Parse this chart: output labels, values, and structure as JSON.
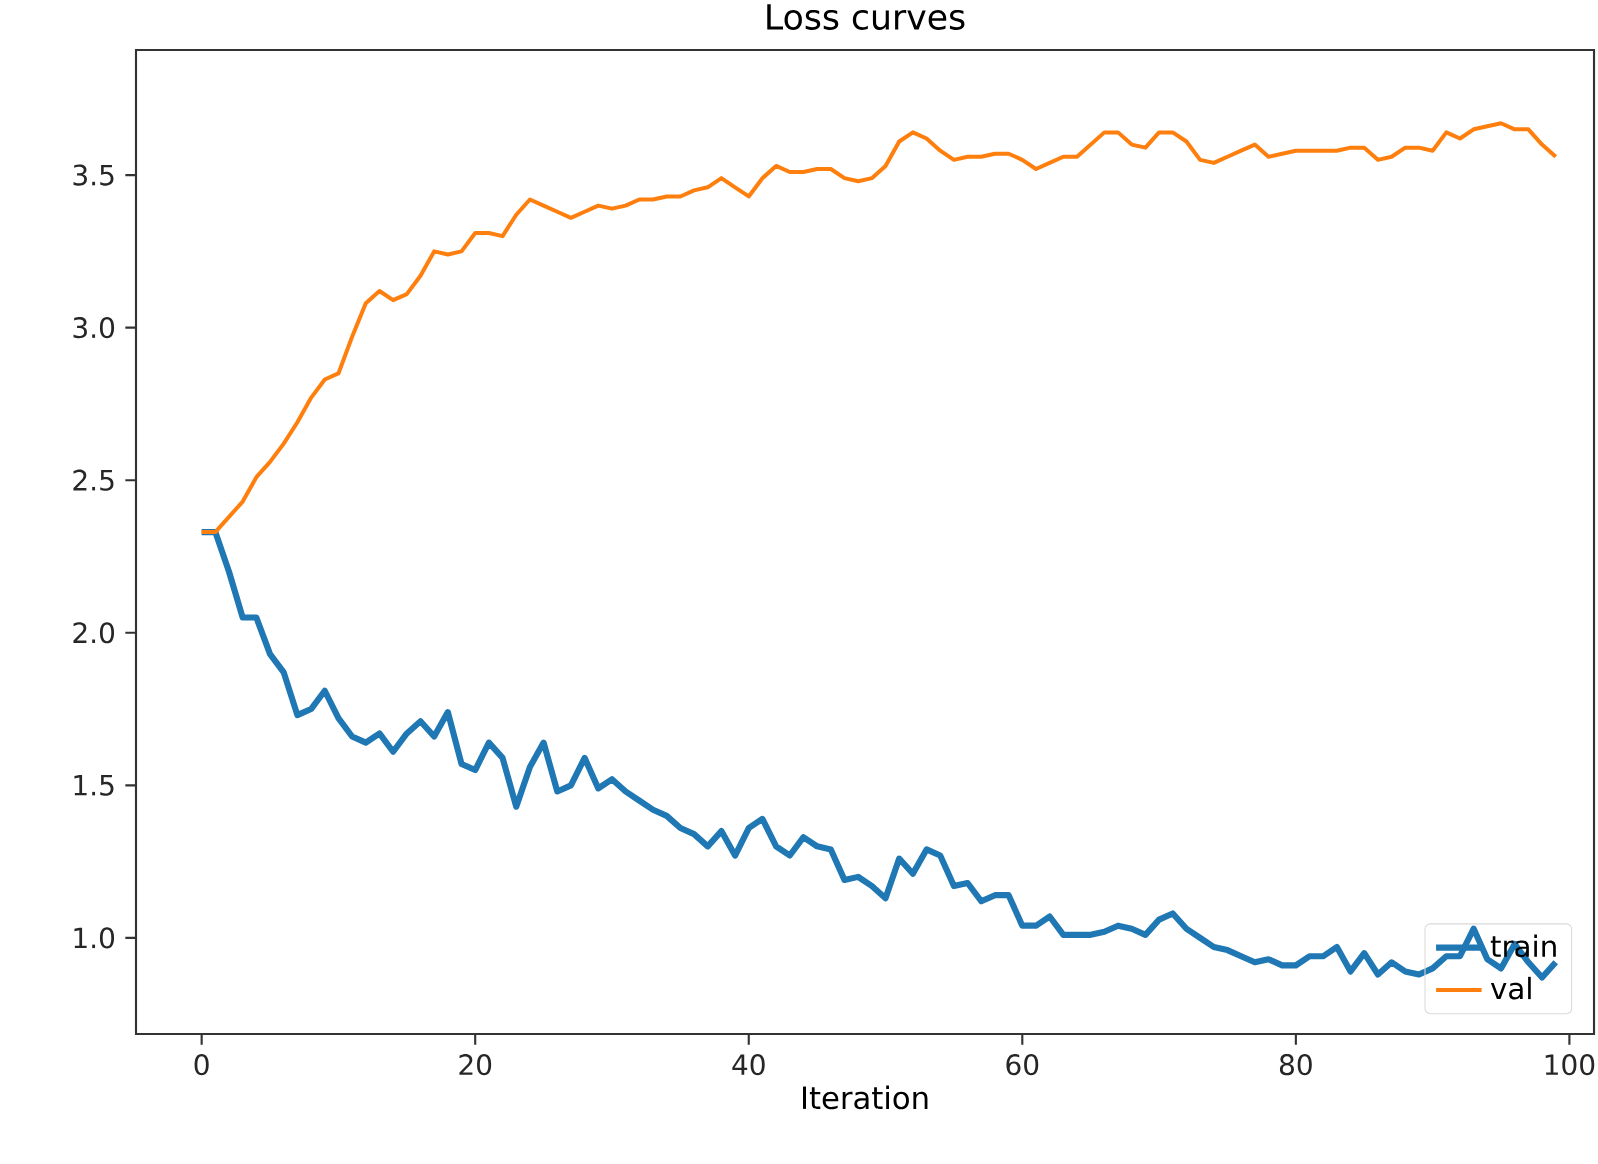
{
  "chart_data": {
    "type": "line",
    "title": "Loss curves",
    "xlabel": "Iteration",
    "x": [
      0,
      1,
      2,
      3,
      4,
      5,
      6,
      7,
      8,
      9,
      10,
      11,
      12,
      13,
      14,
      15,
      16,
      17,
      18,
      19,
      20,
      21,
      22,
      23,
      24,
      25,
      26,
      27,
      28,
      29,
      30,
      31,
      32,
      33,
      34,
      35,
      36,
      37,
      38,
      39,
      40,
      41,
      42,
      43,
      44,
      45,
      46,
      47,
      48,
      49,
      50,
      51,
      52,
      53,
      54,
      55,
      56,
      57,
      58,
      59,
      60,
      61,
      62,
      63,
      64,
      65,
      66,
      67,
      68,
      69,
      70,
      71,
      72,
      73,
      74,
      75,
      76,
      77,
      78,
      79,
      80,
      81,
      82,
      83,
      84,
      85,
      86,
      87,
      88,
      89,
      90,
      91,
      92,
      93,
      94,
      95,
      96,
      97,
      98,
      99
    ],
    "series": [
      {
        "name": "train",
        "color": "#1f77b4",
        "values": [
          2.33,
          2.33,
          2.2,
          2.05,
          2.05,
          1.93,
          1.87,
          1.73,
          1.75,
          1.81,
          1.72,
          1.66,
          1.64,
          1.67,
          1.61,
          1.67,
          1.71,
          1.66,
          1.74,
          1.57,
          1.55,
          1.64,
          1.59,
          1.43,
          1.56,
          1.64,
          1.48,
          1.5,
          1.59,
          1.49,
          1.52,
          1.48,
          1.45,
          1.42,
          1.4,
          1.36,
          1.34,
          1.3,
          1.35,
          1.27,
          1.36,
          1.39,
          1.3,
          1.27,
          1.33,
          1.3,
          1.29,
          1.19,
          1.2,
          1.17,
          1.13,
          1.26,
          1.21,
          1.29,
          1.27,
          1.17,
          1.18,
          1.12,
          1.14,
          1.14,
          1.04,
          1.04,
          1.07,
          1.01,
          1.01,
          1.01,
          1.02,
          1.04,
          1.03,
          1.01,
          1.06,
          1.08,
          1.03,
          1.0,
          0.97,
          0.96,
          0.94,
          0.92,
          0.93,
          0.91,
          0.91,
          0.94,
          0.94,
          0.97,
          0.89,
          0.95,
          0.88,
          0.92,
          0.89,
          0.88,
          0.9,
          0.94,
          0.94,
          1.03,
          0.93,
          0.9,
          0.98,
          0.92,
          0.87,
          0.92
        ]
      },
      {
        "name": "val",
        "color": "#ff7f0e",
        "values": [
          2.33,
          2.33,
          2.38,
          2.43,
          2.51,
          2.56,
          2.62,
          2.69,
          2.77,
          2.83,
          2.85,
          2.97,
          3.08,
          3.12,
          3.09,
          3.11,
          3.17,
          3.25,
          3.24,
          3.25,
          3.31,
          3.31,
          3.3,
          3.37,
          3.42,
          3.4,
          3.38,
          3.36,
          3.38,
          3.4,
          3.39,
          3.4,
          3.42,
          3.42,
          3.43,
          3.43,
          3.45,
          3.46,
          3.49,
          3.46,
          3.43,
          3.49,
          3.53,
          3.51,
          3.51,
          3.52,
          3.52,
          3.49,
          3.48,
          3.49,
          3.53,
          3.61,
          3.64,
          3.62,
          3.58,
          3.55,
          3.56,
          3.56,
          3.57,
          3.57,
          3.55,
          3.52,
          3.54,
          3.56,
          3.56,
          3.6,
          3.64,
          3.64,
          3.6,
          3.59,
          3.64,
          3.64,
          3.61,
          3.55,
          3.54,
          3.56,
          3.58,
          3.6,
          3.56,
          3.57,
          3.58,
          3.58,
          3.58,
          3.58,
          3.59,
          3.59,
          3.55,
          3.56,
          3.59,
          3.59,
          3.58,
          3.64,
          3.62,
          3.65,
          3.66,
          3.67,
          3.65,
          3.65,
          3.6,
          3.56
        ]
      }
    ],
    "xlim": [
      -4.8,
      101.8
    ],
    "ylim": [
      0.685,
      3.91
    ],
    "xticks": [
      0,
      20,
      40,
      60,
      80,
      100
    ],
    "yticks": [
      {
        "value": 1.0,
        "label": "1.0"
      },
      {
        "value": 1.5,
        "label": "1.5"
      },
      {
        "value": 2.0,
        "label": "2.0"
      },
      {
        "value": 2.5,
        "label": "2.5"
      },
      {
        "value": 3.0,
        "label": "3.0"
      },
      {
        "value": 3.5,
        "label": "3.5"
      }
    ],
    "legend": "bottom right",
    "grid": false
  }
}
